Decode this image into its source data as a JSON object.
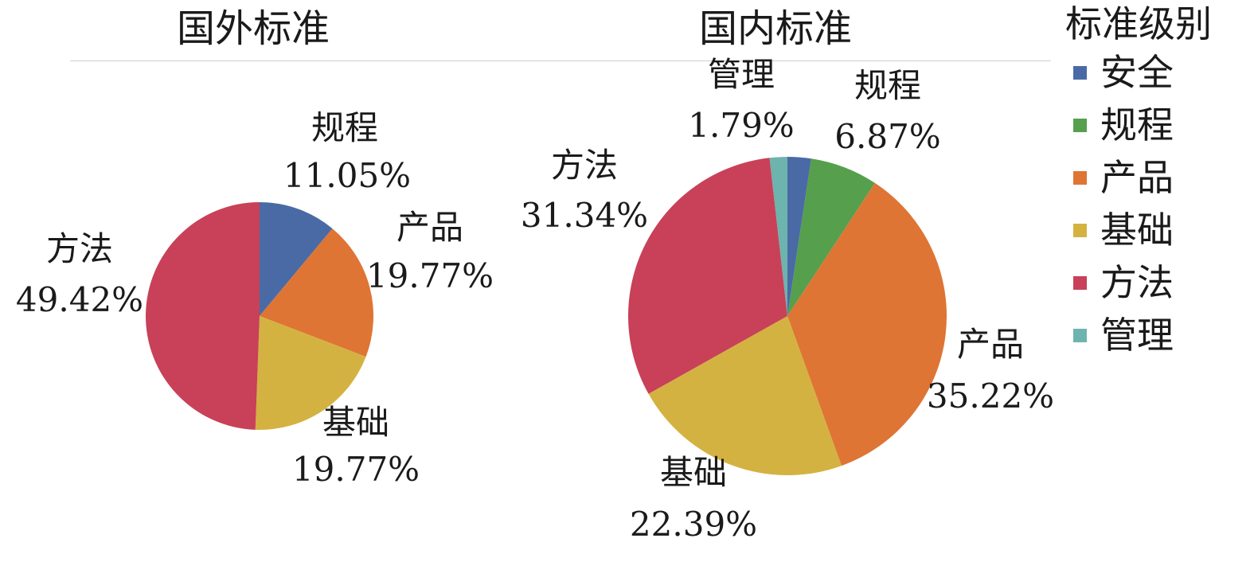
{
  "chart_data": [
    {
      "type": "pie",
      "title": "国外标准",
      "slices": [
        {
          "key": "safety",
          "label": "规程",
          "value": 11.05,
          "text": "11.05%"
        },
        {
          "key": "product",
          "label": "产品",
          "value": 19.77,
          "text": "19.77%"
        },
        {
          "key": "basic",
          "label": "基础",
          "value": 19.77,
          "text": "19.77%"
        },
        {
          "key": "method",
          "label": "方法",
          "value": 49.42,
          "text": "49.42%"
        }
      ]
    },
    {
      "type": "pie",
      "title": "国内标准",
      "slices": [
        {
          "key": "safety",
          "label": "安全",
          "value": 2.39,
          "text": ""
        },
        {
          "key": "procedure",
          "label": "规程",
          "value": 6.87,
          "text": "6.87%"
        },
        {
          "key": "product",
          "label": "产品",
          "value": 35.22,
          "text": "35.22%"
        },
        {
          "key": "basic",
          "label": "基础",
          "value": 22.39,
          "text": "22.39%"
        },
        {
          "key": "method",
          "label": "方法",
          "value": 31.34,
          "text": "31.34%"
        },
        {
          "key": "management",
          "label": "管理",
          "value": 1.79,
          "text": "1.79%"
        }
      ]
    }
  ],
  "legend": {
    "title": "标准级别",
    "placement": "right",
    "items": [
      {
        "label": "安全",
        "color": "#4a6aa5"
      },
      {
        "label": "规程",
        "color": "#569f4d"
      },
      {
        "label": "产品",
        "color": "#de7534"
      },
      {
        "label": "基础",
        "color": "#d4b241"
      },
      {
        "label": "方法",
        "color": "#c84158"
      },
      {
        "label": "管理",
        "color": "#6db3ae"
      }
    ]
  },
  "colors": {
    "safety": "#4a6aa5",
    "procedure": "#569f4d",
    "product": "#de7534",
    "basic": "#d4b241",
    "method": "#c84158",
    "management": "#6db3ae"
  }
}
